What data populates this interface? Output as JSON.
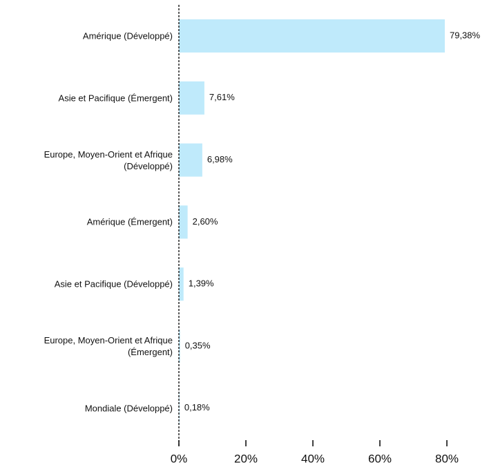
{
  "chart_data": {
    "type": "hbar",
    "categories": [
      "Amérique (Développé)",
      "Asie et Pacifique (Émergent)",
      "Europe, Moyen-Orient et Afrique (Développé)",
      "Amérique (Émergent)",
      "Asie et Pacifique (Développé)",
      "Europe, Moyen-Orient et Afrique (Émergent)",
      "Mondiale (Développé)"
    ],
    "values": [
      79.38,
      7.61,
      6.98,
      2.6,
      1.39,
      0.35,
      0.18
    ],
    "value_labels": [
      "79,38%",
      "7,61%",
      "6,98%",
      "2,60%",
      "1,39%",
      "0,35%",
      "0,18%"
    ],
    "color": "#bfeafb",
    "xlim": [
      0,
      80
    ],
    "xticks": [
      {
        "value": 0,
        "label": "0%"
      },
      {
        "value": 20,
        "label": "20%"
      },
      {
        "value": 40,
        "label": "40%"
      },
      {
        "value": 60,
        "label": "60%"
      },
      {
        "value": 80,
        "label": "80%"
      }
    ]
  }
}
